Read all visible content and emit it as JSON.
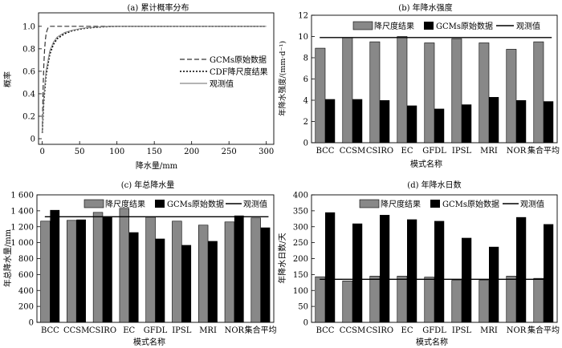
{
  "figure": {
    "background": "#ffffff",
    "axis_color": "#000000"
  },
  "chart_data": [
    {
      "type": "line",
      "title": "(a) 累计概率分布",
      "xlabel": "降水量/mm",
      "ylabel": "概率",
      "xlim": [
        -5,
        310
      ],
      "ylim": [
        -0.05,
        1.12
      ],
      "xticks": [
        0,
        50,
        100,
        150,
        200,
        250,
        300
      ],
      "yticks": [
        0,
        0.2,
        0.4,
        0.6,
        0.8,
        1.0
      ],
      "ytick_labels": [
        "0",
        "0.2",
        "0.4",
        "0.6",
        "0.8",
        "1.0"
      ],
      "grid": false,
      "legend_position": "center-right",
      "series": [
        {
          "name": "GCMs原始数据",
          "style": "dashed",
          "color": "#333333",
          "x": [
            0,
            1,
            2,
            3,
            4,
            5,
            6,
            7,
            8,
            10,
            12,
            300
          ],
          "y": [
            0.05,
            0.42,
            0.64,
            0.78,
            0.87,
            0.925,
            0.955,
            0.975,
            0.99,
            1.0,
            1.0,
            1.0
          ]
        },
        {
          "name": "CDF降尺度结果",
          "style": "dotted",
          "color": "#000000",
          "x": [
            0,
            2,
            5,
            10,
            15,
            20,
            30,
            40,
            50,
            60,
            80,
            100,
            300
          ],
          "y": [
            0.05,
            0.33,
            0.56,
            0.75,
            0.84,
            0.89,
            0.935,
            0.96,
            0.975,
            0.985,
            0.995,
            1.0,
            1.0
          ]
        },
        {
          "name": "观测值",
          "style": "solid",
          "color": "#888888",
          "x": [
            0,
            2,
            5,
            10,
            15,
            20,
            30,
            40,
            50,
            60,
            80,
            100,
            300
          ],
          "y": [
            0.05,
            0.36,
            0.6,
            0.78,
            0.86,
            0.905,
            0.945,
            0.965,
            0.978,
            0.988,
            0.996,
            1.0,
            1.0
          ]
        }
      ]
    },
    {
      "type": "bar",
      "title": "(b) 年降水强度",
      "xlabel": "模式名称",
      "ylabel": "年降水强度/(mm·d⁻¹)",
      "categories": [
        "BCC",
        "CCSM",
        "CSIRO",
        "EC",
        "GFDL",
        "IPSL",
        "MRI",
        "NOR",
        "集合平均"
      ],
      "ylim": [
        0,
        12
      ],
      "yticks": [
        0,
        2,
        4,
        6,
        8,
        10,
        12
      ],
      "grid": false,
      "legend_position": "top",
      "series": [
        {
          "name": "降尺度结果",
          "color": "#888888",
          "values": [
            8.9,
            9.9,
            9.5,
            10.0,
            9.4,
            9.8,
            9.4,
            8.8,
            9.5
          ]
        },
        {
          "name": "GCMs原始数据",
          "color": "#000000",
          "values": [
            4.1,
            4.1,
            4.0,
            3.5,
            3.2,
            3.6,
            4.3,
            4.0,
            3.9
          ]
        }
      ],
      "reference_line": {
        "name": "观测值",
        "value": 9.9
      }
    },
    {
      "type": "bar",
      "title": "(c) 年总降水量",
      "xlabel": "模式名称",
      "ylabel": "年总降水量/mm",
      "categories": [
        "BCC",
        "CCSM",
        "CSIRO",
        "EC",
        "GFDL",
        "IPSL",
        "MRI",
        "NOR",
        "集合平均"
      ],
      "ylim": [
        0,
        1600
      ],
      "yticks": [
        0,
        200,
        400,
        600,
        800,
        1000,
        1200,
        1400,
        1600
      ],
      "ytick_labels": [
        "0",
        "200",
        "400",
        "600",
        "800",
        "1 000",
        "1 200",
        "1 400",
        "1 600"
      ],
      "grid": false,
      "legend_position": "top",
      "series": [
        {
          "name": "降尺度结果",
          "color": "#888888",
          "values": [
            1270,
            1280,
            1380,
            1430,
            1320,
            1270,
            1220,
            1260,
            1310
          ]
        },
        {
          "name": "GCMs原始数据",
          "color": "#000000",
          "values": [
            1410,
            1290,
            1330,
            1130,
            1050,
            970,
            1020,
            1340,
            1190
          ]
        }
      ],
      "reference_line": {
        "name": "观测值",
        "value": 1325
      }
    },
    {
      "type": "bar",
      "title": "(d) 年降水日数",
      "xlabel": "模式名称",
      "ylabel": "年降水日数/天",
      "categories": [
        "BCC",
        "CCSM",
        "CSIRO",
        "EC",
        "GFDL",
        "IPSL",
        "MRI",
        "NOR",
        "集合平均"
      ],
      "ylim": [
        0,
        400
      ],
      "yticks": [
        0,
        50,
        100,
        150,
        200,
        250,
        300,
        350,
        400
      ],
      "grid": false,
      "legend_position": "top",
      "series": [
        {
          "name": "降尺度结果",
          "color": "#888888",
          "values": [
            143,
            130,
            145,
            145,
            142,
            132,
            132,
            145,
            138
          ]
        },
        {
          "name": "GCMs原始数据",
          "color": "#000000",
          "values": [
            345,
            310,
            337,
            323,
            318,
            265,
            237,
            330,
            308
          ]
        }
      ],
      "reference_line": {
        "name": "观测值",
        "value": 135
      }
    }
  ]
}
